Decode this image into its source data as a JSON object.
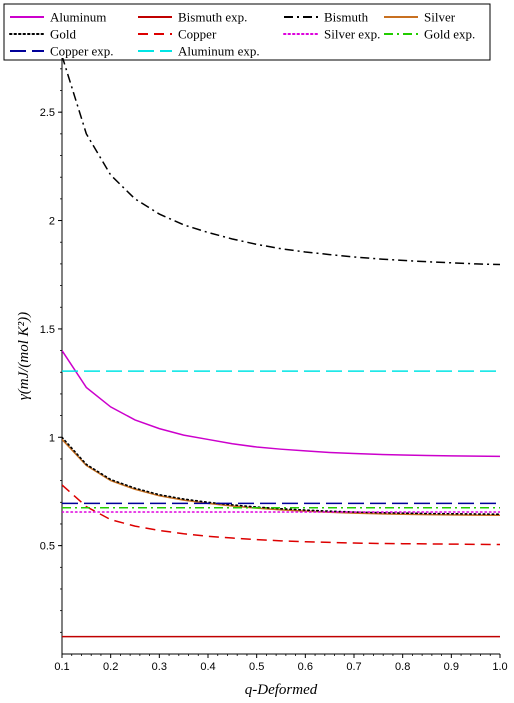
{
  "chart_data": {
    "type": "line",
    "xlabel": "q-Deformed",
    "ylabel": "γ(mJ/(mol K²))",
    "xlim": [
      0.1,
      1.0
    ],
    "ylim": [
      0.0,
      2.75
    ],
    "x_ticks": [
      "0.1",
      "0.2",
      "0.3",
      "0.4",
      "0.5",
      "0.6",
      "0.7",
      "0.8",
      "0.9",
      "1.0"
    ],
    "y_ticks": [
      "0.5",
      "1",
      "1.5",
      "2",
      "2.5"
    ],
    "grid": false,
    "legend_position": "top",
    "x": [
      0.1,
      0.15,
      0.2,
      0.25,
      0.3,
      0.35,
      0.4,
      0.45,
      0.5,
      0.55,
      0.6,
      0.65,
      0.7,
      0.75,
      0.8,
      0.85,
      0.9,
      0.95,
      1.0
    ],
    "series": [
      {
        "name": "Aluminum",
        "color": "#cc00cc",
        "style": "solid",
        "width": 1.5,
        "values": [
          1.4,
          1.23,
          1.14,
          1.08,
          1.04,
          1.01,
          0.99,
          0.97,
          0.955,
          0.945,
          0.937,
          0.93,
          0.925,
          0.921,
          0.918,
          0.916,
          0.914,
          0.913,
          0.912
        ]
      },
      {
        "name": "Bismuth exp.",
        "color": "#c00000",
        "style": "solid",
        "width": 1.5,
        "values": [
          0.08,
          0.08,
          0.08,
          0.08,
          0.08,
          0.08,
          0.08,
          0.08,
          0.08,
          0.08,
          0.08,
          0.08,
          0.08,
          0.08,
          0.08,
          0.08,
          0.08,
          0.08,
          0.08
        ]
      },
      {
        "name": "Bismuth",
        "color": "#000000",
        "style": "dashdot",
        "width": 1.5,
        "values": [
          2.76,
          2.4,
          2.21,
          2.1,
          2.03,
          1.98,
          1.945,
          1.915,
          1.89,
          1.87,
          1.855,
          1.843,
          1.832,
          1.823,
          1.816,
          1.81,
          1.805,
          1.8,
          1.797
        ]
      },
      {
        "name": "Silver",
        "color": "#c87020",
        "style": "solid",
        "width": 1.5,
        "values": [
          0.99,
          0.87,
          0.8,
          0.76,
          0.73,
          0.71,
          0.695,
          0.683,
          0.673,
          0.665,
          0.659,
          0.654,
          0.65,
          0.647,
          0.645,
          0.643,
          0.642,
          0.641,
          0.64
        ]
      },
      {
        "name": "Gold",
        "color": "#000000",
        "style": "dotted",
        "width": 1.6,
        "values": [
          1.0,
          0.875,
          0.805,
          0.765,
          0.735,
          0.715,
          0.7,
          0.688,
          0.678,
          0.67,
          0.664,
          0.659,
          0.655,
          0.652,
          0.65,
          0.648,
          0.647,
          0.646,
          0.645
        ]
      },
      {
        "name": "Copper",
        "color": "#dd0000",
        "style": "dashed",
        "width": 1.5,
        "values": [
          0.78,
          0.68,
          0.62,
          0.59,
          0.57,
          0.555,
          0.543,
          0.535,
          0.528,
          0.522,
          0.518,
          0.515,
          0.512,
          0.51,
          0.509,
          0.508,
          0.507,
          0.506,
          0.505
        ]
      },
      {
        "name": "Silver exp.",
        "color": "#dd00dd",
        "style": "dotted",
        "width": 1.5,
        "values": [
          0.655,
          0.655,
          0.655,
          0.655,
          0.655,
          0.655,
          0.655,
          0.655,
          0.655,
          0.655,
          0.655,
          0.655,
          0.655,
          0.655,
          0.655,
          0.655,
          0.655,
          0.655,
          0.655
        ]
      },
      {
        "name": "Gold exp.",
        "color": "#22cc00",
        "style": "dashdot",
        "width": 1.5,
        "values": [
          0.675,
          0.675,
          0.675,
          0.675,
          0.675,
          0.675,
          0.675,
          0.675,
          0.675,
          0.675,
          0.675,
          0.675,
          0.675,
          0.675,
          0.675,
          0.675,
          0.675,
          0.675,
          0.675
        ]
      },
      {
        "name": "Copper  exp.",
        "color": "#000099",
        "style": "longdash",
        "width": 1.5,
        "values": [
          0.695,
          0.695,
          0.695,
          0.695,
          0.695,
          0.695,
          0.695,
          0.695,
          0.695,
          0.695,
          0.695,
          0.695,
          0.695,
          0.695,
          0.695,
          0.695,
          0.695,
          0.695,
          0.695
        ]
      },
      {
        "name": "Aluminum exp.",
        "color": "#00e5e5",
        "style": "longdash",
        "width": 1.5,
        "values": [
          1.305,
          1.305,
          1.305,
          1.305,
          1.305,
          1.305,
          1.305,
          1.305,
          1.305,
          1.305,
          1.305,
          1.305,
          1.305,
          1.305,
          1.305,
          1.305,
          1.305,
          1.305,
          1.305
        ]
      }
    ]
  }
}
